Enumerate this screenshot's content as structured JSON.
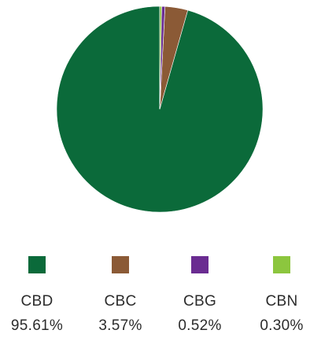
{
  "chart_data": {
    "type": "pie",
    "categories": [
      "CBD",
      "CBC",
      "CBG",
      "CBN"
    ],
    "values": [
      95.61,
      3.57,
      0.52,
      0.3
    ],
    "value_labels": [
      "95.61%",
      "3.57%",
      "0.52%",
      "0.30%"
    ],
    "colors": [
      "#0b6a3a",
      "#8b5a36",
      "#6a2c91",
      "#8cc63e"
    ],
    "title": "",
    "legend_position": "bottom"
  },
  "legend": [
    {
      "label": "CBD",
      "value": "95.61%",
      "color": "#0b6a3a"
    },
    {
      "label": "CBC",
      "value": "3.57%",
      "color": "#8b5a36"
    },
    {
      "label": "CBG",
      "value": "0.52%",
      "color": "#6a2c91"
    },
    {
      "label": "CBN",
      "value": "0.30%",
      "color": "#8cc63e"
    }
  ]
}
